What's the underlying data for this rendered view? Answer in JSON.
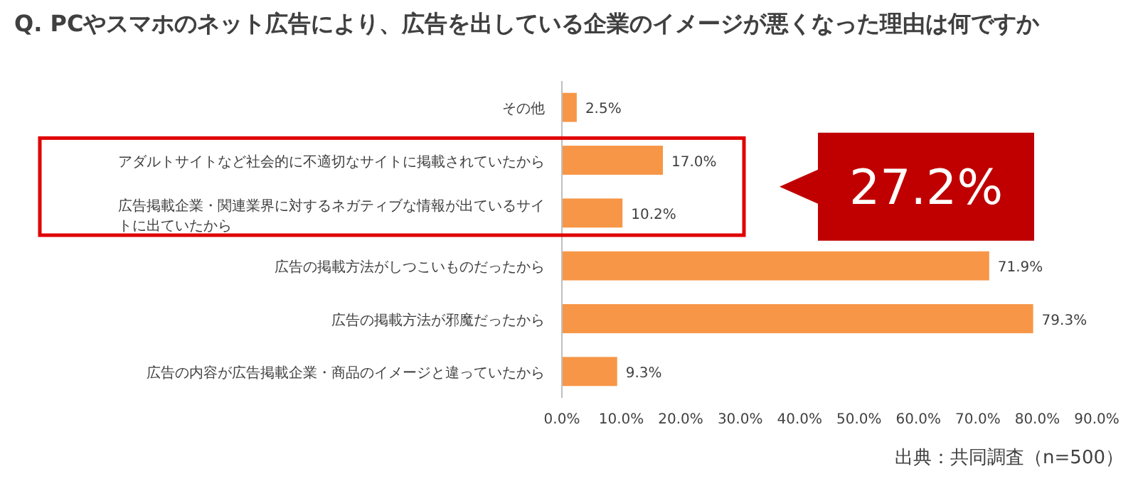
{
  "chart_data": {
    "type": "bar",
    "orientation": "horizontal",
    "title": "Q. PCやスマホのネット広告により、広告を出している企業のイメージが悪くなった理由は何ですか",
    "categories": [
      "その他",
      "アダルトサイトなど社会的に不適切なサイトに掲載されていたから",
      "広告掲載企業・関連業界に対するネガティブな情報が出ているサイトに出ていたから",
      "広告の掲載方法がしつこいものだったから",
      "広告の掲載方法が邪魔だったから",
      "広告の内容が広告掲載企業・商品のイメージと違っていたから"
    ],
    "values": [
      2.5,
      17.0,
      10.2,
      71.9,
      79.3,
      9.3
    ],
    "color": "#f79646",
    "value_labels": [
      "2.5%",
      "17.0%",
      "10.2%",
      "71.9%",
      "79.3%",
      "9.3%"
    ],
    "xlim": [
      0,
      90
    ],
    "xticks": [
      {
        "value": 0,
        "label": "0.0%"
      },
      {
        "value": 10,
        "label": "10.0%"
      },
      {
        "value": 20,
        "label": "20.0%"
      },
      {
        "value": 30,
        "label": "30.0%"
      },
      {
        "value": 40,
        "label": "40.0%"
      },
      {
        "value": 50,
        "label": "50.0%"
      },
      {
        "value": 60,
        "label": "60.0%"
      },
      {
        "value": 70,
        "label": "70.0%"
      },
      {
        "value": 80,
        "label": "80.0%"
      },
      {
        "value": 90,
        "label": "90.0%"
      }
    ],
    "grid": false,
    "annotations": [
      "27.2%",
      "出典：共同調査（n=500）"
    ]
  }
}
